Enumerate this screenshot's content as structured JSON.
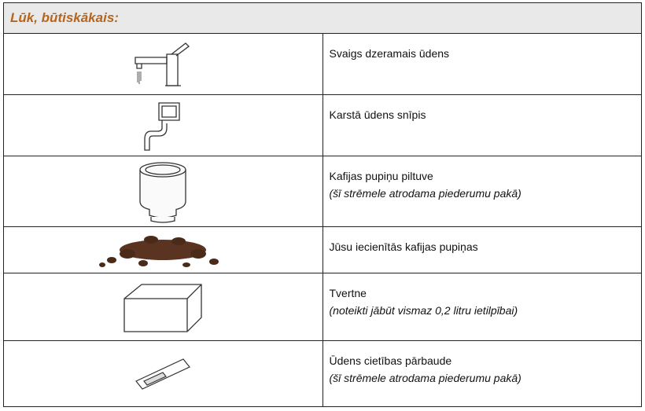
{
  "header": {
    "title": "Lūk, būtiskākais:"
  },
  "rows": [
    {
      "text": "Svaigs dzeramais ūdens"
    },
    {
      "text": "Karstā ūdens snīpis"
    },
    {
      "text": "Kafijas pupiņu piltuve",
      "note": "(šī strēmele atrodama piederumu pakā)"
    },
    {
      "text": "Jūsu iecienītās kafijas pupiņas"
    },
    {
      "text": "Tvertne",
      "note": "(noteikti jābūt vismaz 0,2 litru ietilpībai)"
    },
    {
      "text": "Ūdens cietības pārbaude",
      "note": "(šī strēmele atrodama piederumu pakā)"
    }
  ]
}
